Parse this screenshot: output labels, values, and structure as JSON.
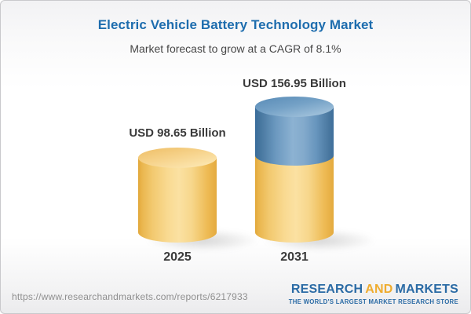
{
  "header": {
    "title": "Electric Vehicle Battery Technology Market",
    "subtitle": "Market forecast to grow at a CAGR of 8.1%"
  },
  "chart_data": {
    "type": "bar",
    "variant": "3d-cylinder",
    "title": "Electric Vehicle Battery Technology Market",
    "subtitle": "Market forecast to grow at a CAGR of 8.1%",
    "categories": [
      "2025",
      "2031"
    ],
    "values": [
      98.65,
      156.95
    ],
    "value_labels": [
      "USD 98.65 Billion",
      "USD 156.95 Billion"
    ],
    "unit": "USD Billion",
    "cagr_percent": 8.1,
    "axes": "none",
    "grid": false,
    "legend": "none",
    "bar_colors": {
      "base_segment": "#f0c469",
      "growth_segment": "#6f9dc4"
    },
    "note": "2031 cylinder is split: yellow lower segment matches 2025 level, blue upper segment represents forecast growth"
  },
  "footer": {
    "url": "https://www.researchandmarkets.com/reports/6217933",
    "logo": {
      "part1": "RESEARCH",
      "part2": "AND",
      "part3": "MARKETS",
      "tagline": "THE WORLD'S LARGEST MARKET RESEARCH STORE"
    }
  },
  "colors": {
    "title_blue": "#1e6dae",
    "subtitle_gray": "#474747",
    "label_dark": "#3a3a3a",
    "url_gray": "#8f8f8f",
    "logo_blue": "#2b6ba5",
    "logo_yellow": "#efac2f",
    "bar_yellow_edge": "#e2a83b",
    "bar_yellow_center": "#fbe1a2",
    "bar_blue_edge": "#396b9b",
    "bar_blue_center": "#8cb2d2",
    "background_top": "#f2f2f4",
    "background_bottom": "#ebebed"
  }
}
